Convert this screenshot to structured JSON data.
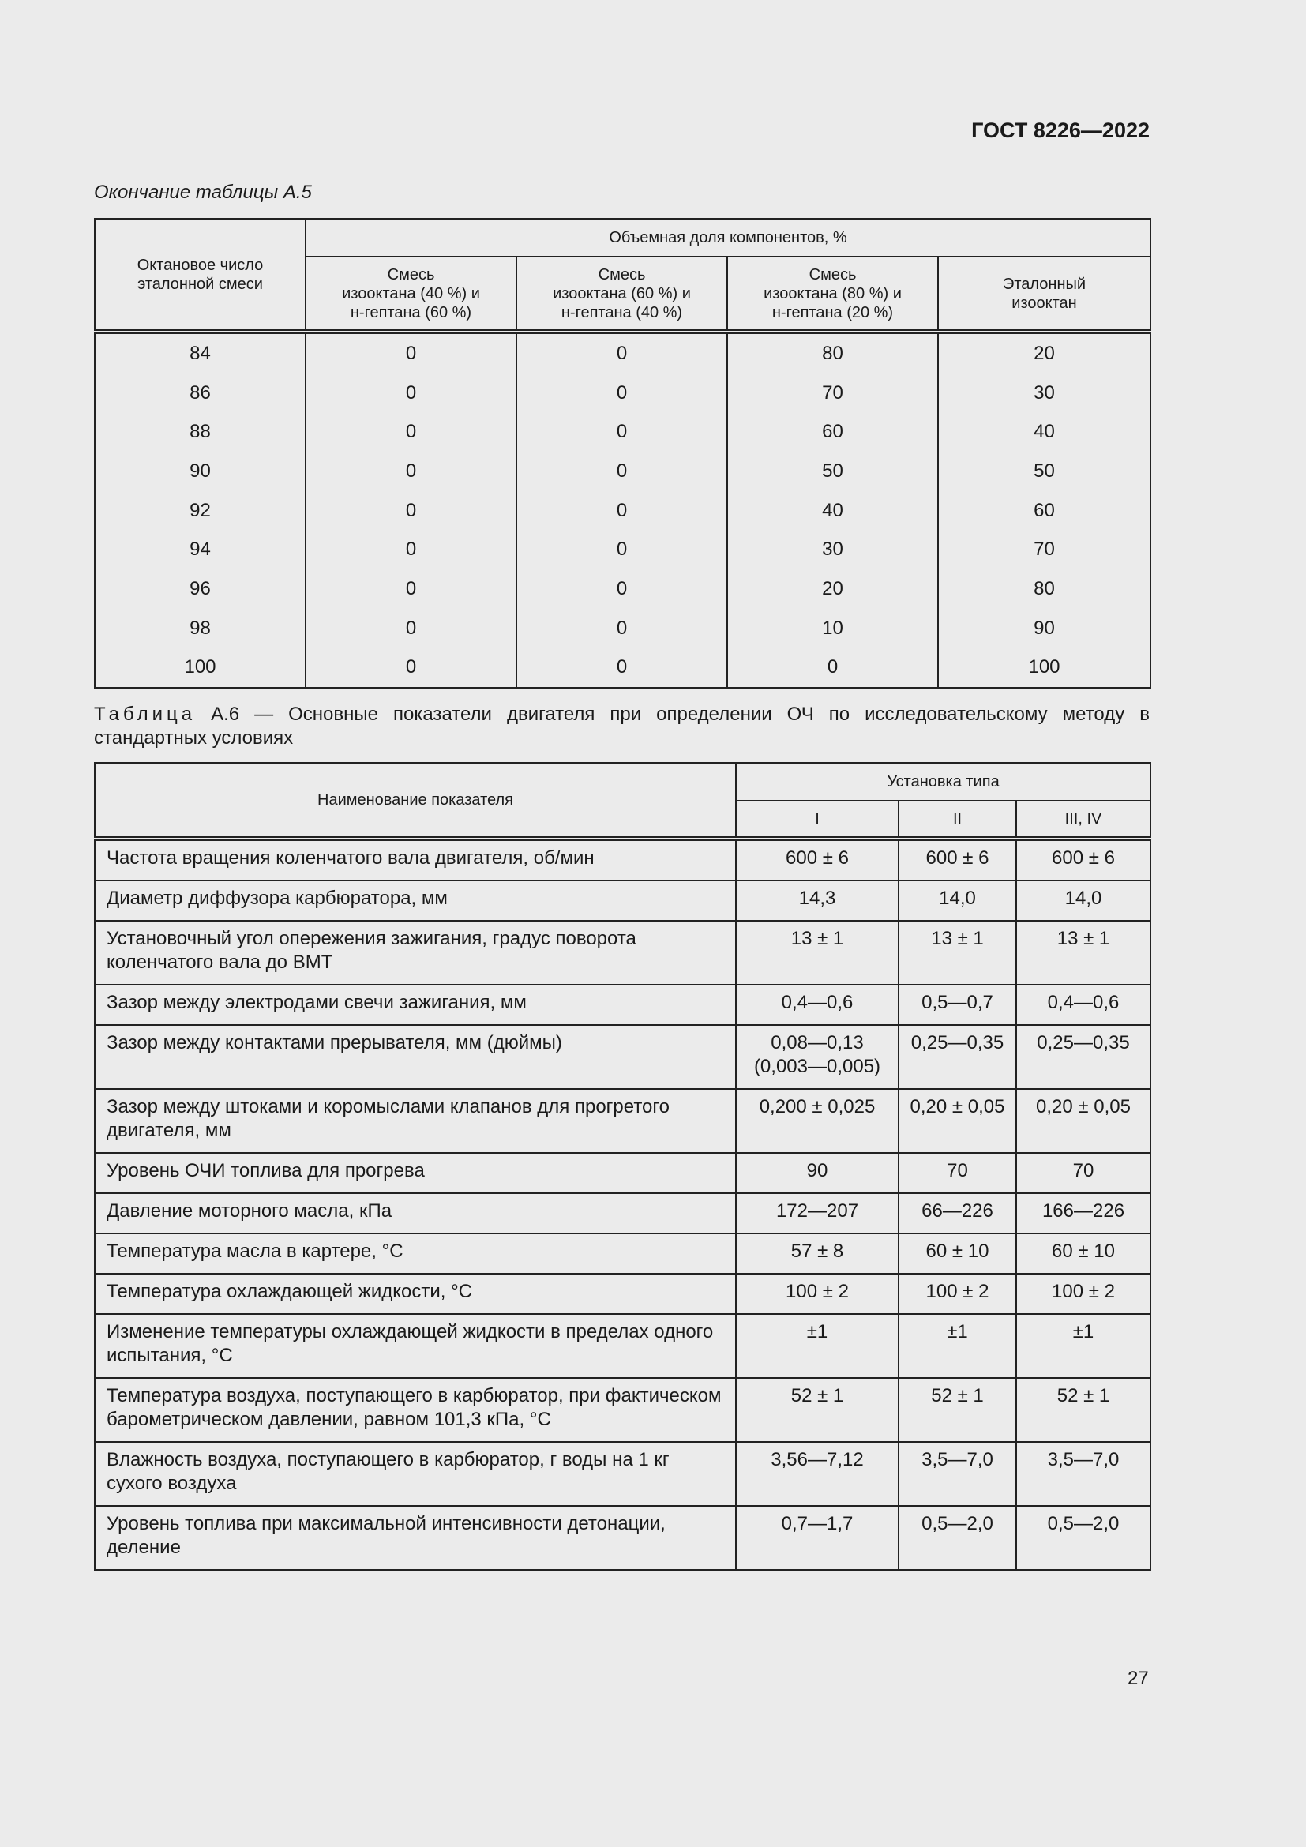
{
  "header": {
    "title": "ГОСТ 8226—2022"
  },
  "table_a5": {
    "caption": "Окончание таблицы А.5",
    "row_header": "Октановое число эталонной смеси",
    "group_header": "Объемная доля компонентов, %",
    "columns": [
      "Смесь\nизооктана (40 %) и\nн-гептана (60 %)",
      "Смесь\nизооктана (60 %) и\nн-гептана (40 %)",
      "Смесь\nизооктана (80 %) и\nн-гептана (20 %)",
      "Эталонный\nизооктан"
    ],
    "rows": [
      [
        84,
        0,
        0,
        80,
        20
      ],
      [
        86,
        0,
        0,
        70,
        30
      ],
      [
        88,
        0,
        0,
        60,
        40
      ],
      [
        90,
        0,
        0,
        50,
        50
      ],
      [
        92,
        0,
        0,
        40,
        60
      ],
      [
        94,
        0,
        0,
        30,
        70
      ],
      [
        96,
        0,
        0,
        20,
        80
      ],
      [
        98,
        0,
        0,
        10,
        90
      ],
      [
        100,
        0,
        0,
        0,
        100
      ]
    ]
  },
  "table_a6": {
    "caption_label": "Таблица",
    "caption_text": "А.6 — Основные показатели двигателя при определении ОЧ по исследовательскому методу в стандартных условиях",
    "row_header": "Наименование показателя",
    "group_header": "Установка типа",
    "columns": [
      "I",
      "II",
      "III,  IV"
    ],
    "rows": [
      [
        "Частота вращения коленчатого вала двигателя, об/мин",
        "600 ± 6",
        "600 ± 6",
        "600 ± 6"
      ],
      [
        "Диаметр диффузора карбюратора, мм",
        "14,3",
        "14,0",
        "14,0"
      ],
      [
        "Установочный угол опережения зажигания, градус поворота коленчатого вала до ВМТ",
        "13 ± 1",
        "13 ± 1",
        "13 ± 1"
      ],
      [
        "Зазор между электродами свечи зажигания, мм",
        "0,4—0,6",
        "0,5—0,7",
        "0,4—0,6"
      ],
      [
        "Зазор между контактами прерывателя, мм (дюймы)",
        "0,08—0,13\n(0,003—0,005)",
        "0,25—0,35",
        "0,25—0,35"
      ],
      [
        "Зазор между штоками и коромыслами клапанов для прогретого двигателя, мм",
        "0,200 ± 0,025",
        "0,20 ± 0,05",
        "0,20 ± 0,05"
      ],
      [
        "Уровень ОЧИ топлива для прогрева",
        "90",
        "70",
        "70"
      ],
      [
        "Давление моторного масла, кПа",
        "172—207",
        "66—226",
        "166—226"
      ],
      [
        "Температура масла в картере, °С",
        "57 ± 8",
        "60 ± 10",
        "60 ± 10"
      ],
      [
        "Температура охлаждающей жидкости, °С",
        "100 ± 2",
        "100 ± 2",
        "100 ± 2"
      ],
      [
        "Изменение температуры охлаждающей жидкости в пределах одного испытания, °С",
        "±1",
        "±1",
        "±1"
      ],
      [
        "Температура воздуха, поступающего в карбюратор, при фактическом барометрическом давлении, равном 101,3 кПа, °С",
        "52 ± 1",
        "52 ± 1",
        "52 ± 1"
      ],
      [
        "Влажность воздуха, поступающего в карбюратор, г воды на 1 кг сухого воздуха",
        "3,56—7,12",
        "3,5—7,0",
        "3,5—7,0"
      ],
      [
        "Уровень топлива при максимальной интенсивности детонации, деление",
        "0,7—1,7",
        "0,5—2,0",
        "0,5—2,0"
      ]
    ]
  },
  "footer": {
    "page_number": "27"
  }
}
